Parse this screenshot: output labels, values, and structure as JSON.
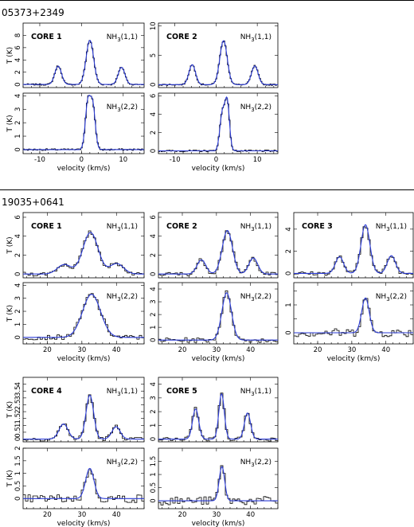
{
  "sources": [
    {
      "name": "05373+2349",
      "xlim": [
        -14,
        15
      ],
      "xticks": [
        -10,
        0,
        10
      ],
      "xlabel": "velocity (km/s)",
      "ylabel": "T (K)",
      "cores": [
        {
          "label": "CORE 1",
          "nh11": {
            "line": "NH3(1,1)",
            "ylim": [
              -0.5,
              10
            ],
            "yticks": [
              0,
              2,
              4,
              6,
              8
            ],
            "vlsr": 2.0,
            "components": [
              {
                "offset": -7.6,
                "amp": 3.0,
                "sigma": 0.8
              },
              {
                "offset": 0,
                "amp": 7.2,
                "sigma": 0.9
              },
              {
                "offset": 7.6,
                "amp": 2.8,
                "sigma": 0.8
              }
            ]
          },
          "nh22": {
            "line": "NH3(2,2)",
            "ylim": [
              -0.3,
              4.2
            ],
            "yticks": [
              0,
              1,
              2,
              3,
              4
            ],
            "vlsr": 2.0,
            "components": [
              {
                "offset": -0.5,
                "amp": 3.4,
                "sigma": 0.6
              },
              {
                "offset": 0.7,
                "amp": 3.2,
                "sigma": 0.6
              }
            ]
          }
        },
        {
          "label": "CORE 2",
          "nh11": {
            "line": "NH3(1,1)",
            "ylim": [
              -0.5,
              10.5
            ],
            "yticks": [
              0,
              5,
              10
            ],
            "vlsr": 1.8,
            "components": [
              {
                "offset": -7.6,
                "amp": 3.4,
                "sigma": 0.8
              },
              {
                "offset": 0,
                "amp": 7.5,
                "sigma": 0.9
              },
              {
                "offset": 7.6,
                "amp": 3.2,
                "sigma": 0.8
              }
            ]
          },
          "nh22": {
            "line": "NH3(2,2)",
            "ylim": [
              -0.3,
              6.3
            ],
            "yticks": [
              0,
              2,
              4,
              6
            ],
            "vlsr": 1.8,
            "components": [
              {
                "offset": -0.3,
                "amp": 4.0,
                "sigma": 0.6
              },
              {
                "offset": 0.9,
                "amp": 5.2,
                "sigma": 0.55
              }
            ]
          }
        }
      ]
    },
    {
      "name": "19035+0641",
      "xlim": [
        13,
        48
      ],
      "xticks": [
        20,
        30,
        40
      ],
      "xlabel": "velocity (km/s)",
      "ylabel": "T (K)",
      "cores": [
        {
          "label": "CORE 1",
          "nh11": {
            "line": "NH3(1,1)",
            "ylim": [
              -0.4,
              6.5
            ],
            "yticks": [
              0,
              2,
              4,
              6
            ],
            "vlsr": 32.5,
            "components": [
              {
                "offset": -7.6,
                "amp": 1.0,
                "sigma": 2.0
              },
              {
                "offset": 0,
                "amp": 4.4,
                "sigma": 2.2
              },
              {
                "offset": 7.6,
                "amp": 1.1,
                "sigma": 2.0
              }
            ]
          },
          "nh22": {
            "line": "NH3(2,2)",
            "ylim": [
              -0.5,
              4.2
            ],
            "yticks": [
              0,
              1,
              2,
              3,
              4
            ],
            "vlsr": 32.8,
            "components": [
              {
                "offset": 0,
                "amp": 3.3,
                "sigma": 2.6
              }
            ]
          }
        },
        {
          "label": "CORE 2",
          "nh11": {
            "line": "NH3(1,1)",
            "ylim": [
              -0.4,
              6.5
            ],
            "yticks": [
              0,
              2,
              4,
              6
            ],
            "vlsr": 33.2,
            "components": [
              {
                "offset": -7.6,
                "amp": 1.5,
                "sigma": 1.3
              },
              {
                "offset": 0,
                "amp": 4.6,
                "sigma": 1.5
              },
              {
                "offset": 7.6,
                "amp": 1.7,
                "sigma": 1.3
              }
            ]
          },
          "nh22": {
            "line": "NH3(2,2)",
            "ylim": [
              -0.3,
              4.5
            ],
            "yticks": [
              0,
              1,
              2,
              3,
              4
            ],
            "vlsr": 33.0,
            "components": [
              {
                "offset": 0,
                "amp": 3.7,
                "sigma": 1.4
              }
            ]
          }
        },
        {
          "label": "CORE 3",
          "nh11": {
            "line": "NH3(1,1)",
            "ylim": [
              -0.4,
              5.5
            ],
            "yticks": [
              0,
              2,
              4
            ],
            "vlsr": 34.0,
            "components": [
              {
                "offset": -7.6,
                "amp": 1.5,
                "sigma": 1.2
              },
              {
                "offset": 0,
                "amp": 4.4,
                "sigma": 1.3
              },
              {
                "offset": 7.6,
                "amp": 1.6,
                "sigma": 1.2
              }
            ]
          },
          "nh22": {
            "line": "NH3(2,2)",
            "ylim": [
              -0.4,
              1.8
            ],
            "yticks": [
              0,
              0.5,
              1,
              1.5
            ],
            "ytickLabels": [
              "0",
              "",
              "1",
              ""
            ],
            "vlsr": 34.0,
            "components": [
              {
                "offset": 0,
                "amp": 1.25,
                "sigma": 1.1
              }
            ]
          }
        },
        {
          "label": "CORE 4",
          "nh11": {
            "line": "NH3(1,1)",
            "ylim": [
              -0.2,
              4.5
            ],
            "yticks": [
              0,
              0.5,
              1,
              1.5,
              2,
              2.5,
              3,
              3.5,
              4
            ],
            "ytickLabels": [
              "0",
              "0.5",
              "1",
              "1.5",
              "2",
              "2.5",
              "3",
              "3.5",
              "4"
            ],
            "vlsr": 32.3,
            "components": [
              {
                "offset": -7.6,
                "amp": 1.1,
                "sigma": 1.3
              },
              {
                "offset": 0,
                "amp": 3.2,
                "sigma": 1.1
              },
              {
                "offset": 7.6,
                "amp": 0.9,
                "sigma": 1.2
              }
            ]
          },
          "nh22": {
            "line": "NH3(2,2)",
            "ylim": [
              -0.4,
              2.0
            ],
            "yticks": [
              0,
              0.5,
              1,
              1.5,
              2
            ],
            "ytickLabels": [
              "0",
              "0.5",
              "1",
              "1.5",
              "2"
            ],
            "vlsr": 32.3,
            "components": [
              {
                "offset": 0,
                "amp": 1.2,
                "sigma": 1.2
              }
            ]
          }
        },
        {
          "label": "CORE 5",
          "nh11": {
            "line": "NH3(1,1)",
            "ylim": [
              -0.2,
              4.5
            ],
            "yticks": [
              0,
              1,
              2,
              3,
              4
            ],
            "vlsr": 31.5,
            "components": [
              {
                "offset": -7.6,
                "amp": 2.2,
                "sigma": 0.9
              },
              {
                "offset": 0,
                "amp": 3.3,
                "sigma": 0.8
              },
              {
                "offset": 7.6,
                "amp": 1.9,
                "sigma": 0.9
              }
            ]
          },
          "nh22": {
            "line": "NH3(2,2)",
            "ylim": [
              -0.3,
              2.0
            ],
            "yticks": [
              0,
              0.5,
              1,
              1.5
            ],
            "ytickLabels": [
              "0",
              "0.5",
              "1",
              "1.5"
            ],
            "vlsr": 31.6,
            "components": [
              {
                "offset": 0,
                "amp": 1.3,
                "sigma": 0.8
              }
            ]
          }
        }
      ]
    }
  ],
  "chart_data": {
    "type": "line",
    "description_units": {
      "x": "velocity (km/s)",
      "y": "T (K)"
    },
    "panels": [
      {
        "source": "05373+2349",
        "core": "CORE 1",
        "line": "NH3(1,1)",
        "peaks_T_K": [
          3.0,
          7.2,
          2.8
        ],
        "vlsr_kms": 2.0
      },
      {
        "source": "05373+2349",
        "core": "CORE 1",
        "line": "NH3(2,2)",
        "peak_T_K": 3.4,
        "vlsr_kms": 2.0
      },
      {
        "source": "05373+2349",
        "core": "CORE 2",
        "line": "NH3(1,1)",
        "peaks_T_K": [
          3.4,
          7.5,
          3.2
        ],
        "vlsr_kms": 1.8
      },
      {
        "source": "05373+2349",
        "core": "CORE 2",
        "line": "NH3(2,2)",
        "peak_T_K": 5.2,
        "vlsr_kms": 1.8
      },
      {
        "source": "19035+0641",
        "core": "CORE 1",
        "line": "NH3(1,1)",
        "peaks_T_K": [
          1.0,
          4.4,
          1.1
        ],
        "vlsr_kms": 32.5
      },
      {
        "source": "19035+0641",
        "core": "CORE 1",
        "line": "NH3(2,2)",
        "peak_T_K": 3.3,
        "vlsr_kms": 32.8
      },
      {
        "source": "19035+0641",
        "core": "CORE 2",
        "line": "NH3(1,1)",
        "peaks_T_K": [
          1.5,
          4.6,
          1.7
        ],
        "vlsr_kms": 33.2
      },
      {
        "source": "19035+0641",
        "core": "CORE 2",
        "line": "NH3(2,2)",
        "peak_T_K": 3.7,
        "vlsr_kms": 33.0
      },
      {
        "source": "19035+0641",
        "core": "CORE 3",
        "line": "NH3(1,1)",
        "peaks_T_K": [
          1.5,
          4.4,
          1.6
        ],
        "vlsr_kms": 34.0
      },
      {
        "source": "19035+0641",
        "core": "CORE 3",
        "line": "NH3(2,2)",
        "peak_T_K": 1.25,
        "vlsr_kms": 34.0
      },
      {
        "source": "19035+0641",
        "core": "CORE 4",
        "line": "NH3(1,1)",
        "peaks_T_K": [
          1.1,
          3.2,
          0.9
        ],
        "vlsr_kms": 32.3
      },
      {
        "source": "19035+0641",
        "core": "CORE 4",
        "line": "NH3(2,2)",
        "peak_T_K": 1.2,
        "vlsr_kms": 32.3
      },
      {
        "source": "19035+0641",
        "core": "CORE 5",
        "line": "NH3(1,1)",
        "peaks_T_K": [
          2.2,
          3.3,
          1.9
        ],
        "vlsr_kms": 31.5
      },
      {
        "source": "19035+0641",
        "core": "CORE 5",
        "line": "NH3(2,2)",
        "peak_T_K": 1.3,
        "vlsr_kms": 31.6
      }
    ],
    "series": [
      {
        "name": "",
        "style": "histogram (observed)"
      },
      {
        "name": "",
        "style": "fit"
      }
    ],
    "colors": {
      "observed": "#000000",
      "fit": "#2b3bd6"
    }
  }
}
